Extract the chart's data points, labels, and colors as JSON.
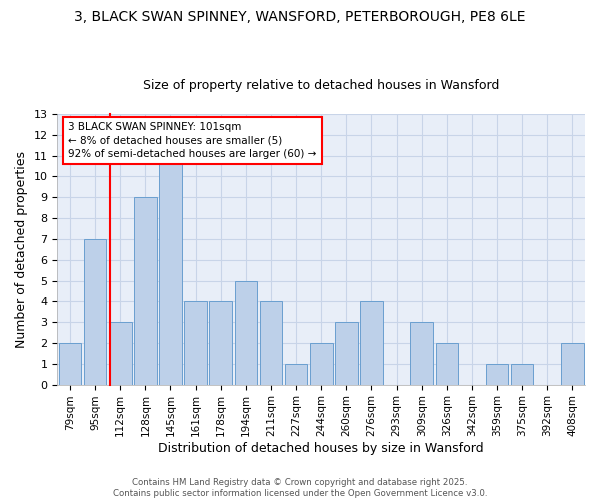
{
  "title_line1": "3, BLACK SWAN SPINNEY, WANSFORD, PETERBOROUGH, PE8 6LE",
  "title_line2": "Size of property relative to detached houses in Wansford",
  "xlabel": "Distribution of detached houses by size in Wansford",
  "ylabel": "Number of detached properties",
  "categories": [
    "79sqm",
    "95sqm",
    "112sqm",
    "128sqm",
    "145sqm",
    "161sqm",
    "178sqm",
    "194sqm",
    "211sqm",
    "227sqm",
    "244sqm",
    "260sqm",
    "276sqm",
    "293sqm",
    "309sqm",
    "326sqm",
    "342sqm",
    "359sqm",
    "375sqm",
    "392sqm",
    "408sqm"
  ],
  "values": [
    2,
    7,
    3,
    9,
    11,
    4,
    4,
    5,
    4,
    1,
    2,
    3,
    4,
    0,
    3,
    2,
    0,
    1,
    1,
    0,
    2
  ],
  "bar_color": "#bdd0e9",
  "bar_edge_color": "#6a9fd0",
  "annotation_text": "3 BLACK SWAN SPINNEY: 101sqm\n← 8% of detached houses are smaller (5)\n92% of semi-detached houses are larger (60) →",
  "annotation_box_color": "white",
  "annotation_box_edge_color": "red",
  "vline_color": "red",
  "vline_x": 1.575,
  "ylim": [
    0,
    13
  ],
  "yticks": [
    0,
    1,
    2,
    3,
    4,
    5,
    6,
    7,
    8,
    9,
    10,
    11,
    12,
    13
  ],
  "grid_color": "#c8d4e8",
  "background_color": "#e8eef8",
  "footnote": "Contains HM Land Registry data © Crown copyright and database right 2025.\nContains public sector information licensed under the Open Government Licence v3.0.",
  "title_fontsize": 10,
  "subtitle_fontsize": 9,
  "bar_width": 0.9
}
